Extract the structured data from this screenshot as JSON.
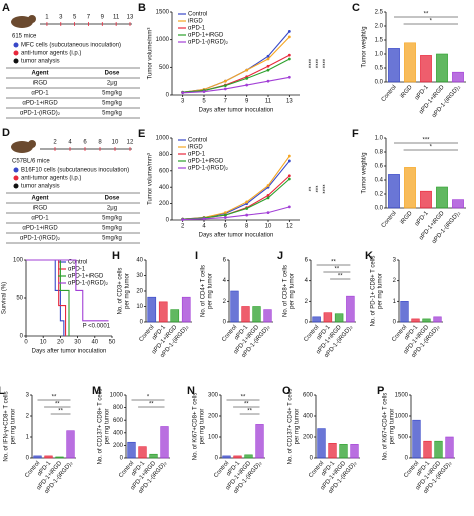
{
  "schematics": [
    {
      "panel": "A",
      "mice": "615 mice",
      "days": [
        1,
        3,
        5,
        7,
        9,
        11,
        13
      ],
      "legend": [
        "MFC cells (subcutaneous inoculation)",
        "anti-tumor agents (i.p.)",
        "tumor analysis"
      ],
      "table": {
        "header": [
          "Agent",
          "Dose"
        ],
        "rows": [
          [
            "iRGD",
            "2μg"
          ],
          [
            "αPD-1",
            "5mg/kg"
          ],
          [
            "αPD-1+iRGD",
            "5mg/kg"
          ],
          [
            "αPD-1-(iRGD)₂",
            "5mg/kg"
          ]
        ]
      }
    },
    {
      "panel": "D",
      "mice": "C57BL/6 mice",
      "days": [
        2,
        4,
        6,
        8,
        10,
        12
      ],
      "legend": [
        "B16F10 cells (subcutaneous inoculation)",
        "anti-tumor agents (i.p.)",
        "tumor analysis"
      ],
      "table": {
        "header": [
          "Agent",
          "Dose"
        ],
        "rows": [
          [
            "iRGD",
            "2μg"
          ],
          [
            "αPD-1",
            "5mg/kg"
          ],
          [
            "αPD-1+iRGD",
            "5mg/kg"
          ],
          [
            "αPD-1-(iRGD)₂",
            "5mg/kg"
          ]
        ]
      }
    }
  ],
  "chart_data": [
    {
      "type": "line",
      "panel": "B",
      "ylabel": [
        "Tumor volume/mm³"
      ],
      "xlabel": "Days after tumor inoculation",
      "x": [
        3,
        5,
        7,
        9,
        11,
        13
      ],
      "xlim": [
        2,
        14
      ],
      "xticks": [
        3,
        5,
        7,
        9,
        11,
        13
      ],
      "ylim": [
        0,
        1500
      ],
      "yticks": [
        0,
        500,
        1000,
        1500
      ],
      "series": [
        {
          "name": "Control",
          "color": "#3848c8",
          "values": [
            50,
            100,
            250,
            450,
            700,
            1150
          ]
        },
        {
          "name": "iRGD",
          "color": "#f5a623",
          "values": [
            50,
            100,
            250,
            450,
            650,
            1050
          ]
        },
        {
          "name": "αPD-1",
          "color": "#e8283c",
          "values": [
            50,
            80,
            180,
            330,
            520,
            720
          ]
        },
        {
          "name": "αPD-1+iRGD",
          "color": "#2ca02c",
          "values": [
            50,
            80,
            170,
            300,
            450,
            650
          ]
        },
        {
          "name": "αPD-1-(iRGD)₂",
          "color": "#a23fd6",
          "values": [
            40,
            60,
            110,
            180,
            250,
            320
          ]
        }
      ],
      "annotations": [
        "****",
        "****",
        "****"
      ]
    },
    {
      "type": "bar",
      "panel": "C",
      "ylabel": [
        "Tumor weight/g"
      ],
      "categories": [
        "Control",
        "iRGD",
        "αPD-1",
        "αPD-1+iRGD",
        "αPD-1-(iRGD)₂"
      ],
      "colors": [
        "#3848c8",
        "#f5a623",
        "#e8283c",
        "#2ca02c",
        "#a23fd6"
      ],
      "values": [
        1.2,
        1.4,
        0.95,
        1.0,
        0.35
      ],
      "ylim": [
        0,
        2.5
      ],
      "yticks": [
        {
          "value": 0,
          "label": "0.0"
        },
        0.5,
        {
          "value": 1,
          "label": "1.0"
        },
        1.5,
        {
          "value": 2,
          "label": "2.0"
        },
        2.5
      ],
      "annotations": [
        "**",
        "*"
      ]
    },
    {
      "type": "line",
      "panel": "E",
      "ylabel": [
        "Tumor volume/mm³"
      ],
      "xlabel": "Days after tumor inoculation",
      "x": [
        2,
        4,
        6,
        8,
        10,
        12
      ],
      "xlim": [
        1,
        13
      ],
      "xticks": [
        2,
        4,
        6,
        8,
        10,
        12
      ],
      "ylim": [
        0,
        1000
      ],
      "yticks": [
        0,
        200,
        400,
        600,
        800,
        1000
      ],
      "series": [
        {
          "name": "Control",
          "color": "#3848c8",
          "values": [
            10,
            30,
            80,
            200,
            400,
            720
          ]
        },
        {
          "name": "iRGD",
          "color": "#f5a623",
          "values": [
            10,
            30,
            90,
            220,
            420,
            780
          ]
        },
        {
          "name": "αPD-1",
          "color": "#e8283c",
          "values": [
            10,
            25,
            60,
            150,
            300,
            540
          ]
        },
        {
          "name": "αPD-1+iRGD",
          "color": "#2ca02c",
          "values": [
            10,
            25,
            60,
            140,
            270,
            500
          ]
        },
        {
          "name": "αPD-1-(iRGD)₂",
          "color": "#a23fd6",
          "values": [
            5,
            15,
            30,
            60,
            90,
            160
          ]
        }
      ],
      "annotations": [
        "**",
        "***",
        "****"
      ]
    },
    {
      "type": "bar",
      "panel": "F",
      "ylabel": [
        "Tumor weight/g"
      ],
      "categories": [
        "Control",
        "iRGD",
        "αPD-1",
        "αPD-1+iRGD",
        "αPD-1-(iRGD)₂"
      ],
      "colors": [
        "#3848c8",
        "#f5a623",
        "#e8283c",
        "#2ca02c",
        "#a23fd6"
      ],
      "values": [
        0.48,
        0.58,
        0.24,
        0.3,
        0.12
      ],
      "ylim": [
        0,
        1
      ],
      "yticks": [
        {
          "value": 0,
          "label": "0.0"
        },
        0.2,
        0.4,
        0.6,
        0.8,
        {
          "value": 1,
          "label": "1.0"
        }
      ],
      "annotations": [
        "***",
        "*"
      ]
    },
    {
      "type": "step",
      "panel": "G",
      "ylabel": [
        "Survival (%)"
      ],
      "xlabel": "Days after tumor inoculation",
      "xlim": [
        0,
        50
      ],
      "xticks": [
        0,
        10,
        20,
        30,
        40,
        50
      ],
      "ylim": [
        0,
        100
      ],
      "yticks": [
        0,
        50,
        100
      ],
      "series": [
        {
          "name": "Control",
          "color": "#3848c8",
          "x": [
            0,
            17,
            17,
            20,
            20,
            22,
            22
          ],
          "values": [
            100,
            100,
            60,
            60,
            20,
            20,
            0
          ]
        },
        {
          "name": "αPD-1",
          "color": "#e8283c",
          "x": [
            0,
            19,
            19,
            23,
            23
          ],
          "values": [
            100,
            100,
            40,
            40,
            0
          ]
        },
        {
          "name": "αPD-1+iRGD",
          "color": "#2ca02c",
          "x": [
            0,
            20,
            20,
            25,
            25
          ],
          "values": [
            100,
            100,
            60,
            60,
            0
          ]
        },
        {
          "name": "αPD-1-(iRGD)₂",
          "color": "#a23fd6",
          "x": [
            0,
            29,
            29,
            33,
            33,
            48
          ],
          "values": [
            100,
            100,
            60,
            60,
            20,
            20
          ]
        }
      ],
      "annotations": [
        "P <0.0001"
      ]
    },
    {
      "type": "bar",
      "panel": "H",
      "ylabel": [
        "No. of CD3+ cells",
        "per mg tumor"
      ],
      "categories": [
        "Control",
        "αPD-1",
        "αPD-1+iRGD",
        "αPD-1-(iRGD)₂"
      ],
      "colors": [
        "#3848c8",
        "#e8283c",
        "#2ca02c",
        "#a23fd6"
      ],
      "values": [
        16,
        13,
        8,
        16
      ],
      "ylim": [
        0,
        40
      ],
      "yticks": [
        0,
        10,
        20,
        30,
        40
      ]
    },
    {
      "type": "bar",
      "panel": "I",
      "ylabel": [
        "No. of CD4+ T cells",
        "per mg tumor"
      ],
      "categories": [
        "Control",
        "αPD-1",
        "αPD-1+iRGD",
        "αPD-1-(iRGD)₂"
      ],
      "colors": [
        "#3848c8",
        "#e8283c",
        "#2ca02c",
        "#a23fd6"
      ],
      "values": [
        3,
        1.5,
        1.5,
        1.2
      ],
      "ylim": [
        0,
        6
      ],
      "yticks": [
        0,
        2,
        4,
        6
      ]
    },
    {
      "type": "bar",
      "panel": "J",
      "ylabel": [
        "No. of CD8+ T cells",
        "per mg tumor"
      ],
      "categories": [
        "Control",
        "αPD-1",
        "αPD-1+iRGD",
        "αPD-1-(iRGD)₂"
      ],
      "colors": [
        "#3848c8",
        "#e8283c",
        "#2ca02c",
        "#a23fd6"
      ],
      "values": [
        0.5,
        0.9,
        0.8,
        2.5
      ],
      "ylim": [
        0,
        6
      ],
      "yticks": [
        0,
        2,
        4,
        6
      ],
      "annotations": [
        "**",
        "**",
        "**"
      ]
    },
    {
      "type": "bar",
      "panel": "K",
      "ylabel": [
        "No. of PD-1+ CD8+ T cells",
        "per mg tumor"
      ],
      "categories": [
        "Control",
        "αPD-1",
        "αPD-1+iRGD",
        "αPD-1-(iRGD)₂"
      ],
      "colors": [
        "#3848c8",
        "#e8283c",
        "#2ca02c",
        "#a23fd6"
      ],
      "values": [
        1.0,
        0.15,
        0.15,
        0.25
      ],
      "ylim": [
        0,
        3
      ],
      "yticks": [
        0,
        1,
        2,
        3
      ]
    },
    {
      "type": "bar",
      "panel": "L",
      "ylabel": [
        "No. of IFN-γ+CD8+ T cells",
        "per mg tumor"
      ],
      "categories": [
        "Control",
        "αPD-1",
        "αPD-1+iRGD",
        "αPD-1-(iRGD)₂"
      ],
      "colors": [
        "#3848c8",
        "#e8283c",
        "#2ca02c",
        "#a23fd6"
      ],
      "values": [
        0.1,
        0.1,
        0.05,
        1.3
      ],
      "ylim": [
        0,
        3
      ],
      "yticks": [
        0,
        1,
        2,
        3
      ],
      "annotations": [
        "**",
        "**",
        "**"
      ]
    },
    {
      "type": "bar",
      "panel": "M",
      "ylabel": [
        "No. of CD137+ CD8+ T cells",
        "per mg tumor"
      ],
      "categories": [
        "Control",
        "αPD-1",
        "αPD-1+iRGD",
        "αPD-1-(iRGD)₂"
      ],
      "colors": [
        "#3848c8",
        "#e8283c",
        "#2ca02c",
        "#a23fd6"
      ],
      "values": [
        250,
        180,
        60,
        500
      ],
      "ylim": [
        0,
        1000
      ],
      "yticks": [
        0,
        200,
        400,
        600,
        800,
        1000
      ],
      "annotations": [
        "*",
        "**"
      ]
    },
    {
      "type": "bar",
      "panel": "N",
      "ylabel": [
        "No. of Ki67+CD8+ T cells",
        "per mg tumor"
      ],
      "categories": [
        "Control",
        "αPD-1",
        "αPD-1+iRGD",
        "αPD-1-(iRGD)₂"
      ],
      "colors": [
        "#3848c8",
        "#e8283c",
        "#2ca02c",
        "#a23fd6"
      ],
      "values": [
        10,
        10,
        15,
        160
      ],
      "ylim": [
        0,
        300
      ],
      "yticks": [
        0,
        100,
        200,
        300
      ],
      "annotations": [
        "**",
        "**",
        "**"
      ]
    },
    {
      "type": "bar",
      "panel": "O",
      "ylabel": [
        "No. of CD137+ CD4+ T cells",
        "per mg tumor"
      ],
      "categories": [
        "Control",
        "αPD-1",
        "αPD-1+iRGD",
        "αPD-1-(iRGD)₂"
      ],
      "colors": [
        "#3848c8",
        "#e8283c",
        "#2ca02c",
        "#a23fd6"
      ],
      "values": [
        280,
        140,
        130,
        130
      ],
      "ylim": [
        0,
        600
      ],
      "yticks": [
        0,
        200,
        400,
        600
      ]
    },
    {
      "type": "bar",
      "panel": "P",
      "ylabel": [
        "No. of Ki67+CD4+ T cells",
        "per mg tumor"
      ],
      "categories": [
        "Control",
        "αPD-1",
        "αPD-1+iRGD",
        "αPD-1-(iRGD)₂"
      ],
      "colors": [
        "#3848c8",
        "#e8283c",
        "#2ca02c",
        "#a23fd6"
      ],
      "values": [
        900,
        400,
        400,
        500
      ],
      "ylim": [
        0,
        1500
      ],
      "yticks": [
        0,
        500,
        1000,
        1500
      ]
    }
  ]
}
